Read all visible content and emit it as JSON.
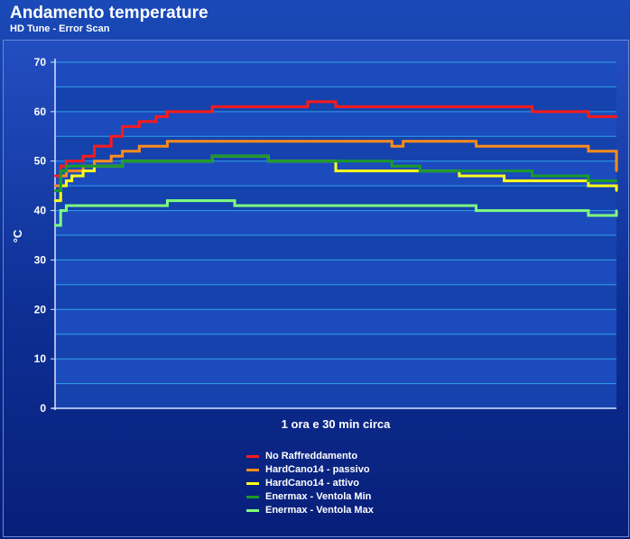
{
  "header": {
    "title": "Andamento temperature",
    "subtitle": "HD Tune - Error Scan"
  },
  "chart_data": {
    "type": "line",
    "title": "Andamento temperature",
    "subtitle": "HD Tune - Error Scan",
    "xlabel": "1 ora e 30 min circa",
    "ylabel": "°C",
    "ylim": [
      0,
      70
    ],
    "yticks": [
      0,
      10,
      20,
      30,
      40,
      50,
      60,
      70
    ],
    "grid": true,
    "legend_position": "bottom",
    "x_note": "sample index over ~90 minutes (0-100)",
    "x": [
      0,
      1,
      2,
      3,
      5,
      7,
      10,
      12,
      15,
      18,
      20,
      22,
      25,
      28,
      30,
      32,
      35,
      38,
      40,
      45,
      48,
      50,
      55,
      60,
      62,
      65,
      70,
      72,
      75,
      80,
      85,
      88,
      90,
      95,
      98,
      99,
      100
    ],
    "series": [
      {
        "name": "No Raffreddamento",
        "color": "#ff1a1a",
        "values": [
          47,
          49,
          50,
          50,
          51,
          53,
          55,
          57,
          58,
          59,
          60,
          60,
          60,
          61,
          61,
          61,
          61,
          61,
          61,
          62,
          62,
          61,
          61,
          61,
          61,
          61,
          61,
          61,
          61,
          61,
          60,
          60,
          60,
          59,
          59,
          59,
          59
        ]
      },
      {
        "name": "HardCano14 - passivo",
        "color": "#ff8c1a",
        "values": [
          45,
          47,
          48,
          48,
          49,
          50,
          51,
          52,
          53,
          53,
          54,
          54,
          54,
          54,
          54,
          54,
          54,
          54,
          54,
          54,
          54,
          54,
          54,
          53,
          54,
          54,
          54,
          54,
          53,
          53,
          53,
          53,
          53,
          52,
          52,
          52,
          48
        ]
      },
      {
        "name": "HardCano14 - attivo",
        "color": "#ffff1a",
        "values": [
          42,
          45,
          46,
          47,
          48,
          49,
          49,
          50,
          50,
          50,
          50,
          50,
          50,
          51,
          51,
          51,
          51,
          50,
          50,
          50,
          50,
          48,
          48,
          48,
          48,
          48,
          48,
          47,
          47,
          46,
          46,
          46,
          46,
          45,
          45,
          45,
          44
        ]
      },
      {
        "name": "Enermax - Ventola Min",
        "color": "#1a9a2a",
        "values": [
          44,
          48,
          49,
          49,
          49,
          49,
          49,
          50,
          50,
          50,
          50,
          50,
          50,
          51,
          51,
          51,
          51,
          50,
          50,
          50,
          50,
          50,
          50,
          49,
          49,
          48,
          48,
          48,
          48,
          48,
          47,
          47,
          47,
          46,
          46,
          46,
          46
        ]
      },
      {
        "name": "Enermax - Ventola Max",
        "color": "#7fff7f",
        "values": [
          37,
          40,
          41,
          41,
          41,
          41,
          41,
          41,
          41,
          41,
          42,
          42,
          42,
          42,
          42,
          41,
          41,
          41,
          41,
          41,
          41,
          41,
          41,
          41,
          41,
          41,
          41,
          41,
          40,
          40,
          40,
          40,
          40,
          39,
          39,
          39,
          40
        ]
      }
    ]
  }
}
